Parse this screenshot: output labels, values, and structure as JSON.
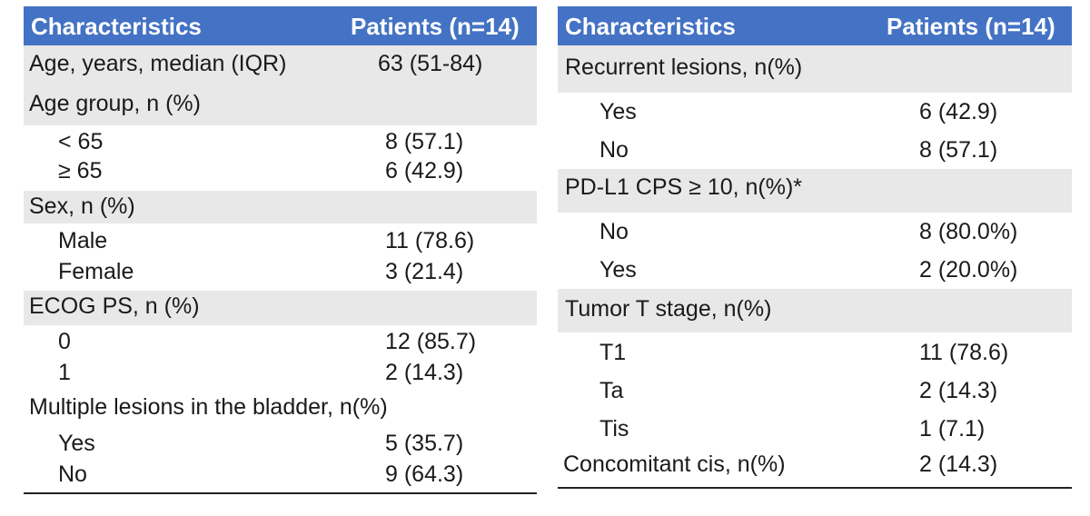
{
  "left_table": {
    "header": {
      "col1": "Characteristics",
      "col2": "Patients (n=14)"
    },
    "rows": [
      {
        "label": "Age, years, median (IQR)",
        "value": "63 (51-84)",
        "kind": "group-value"
      },
      {
        "label": "Age group, n (%)",
        "value": "",
        "kind": "group"
      },
      {
        "label": "< 65",
        "value": "8 (57.1)",
        "kind": "item"
      },
      {
        "label": "≥ 65",
        "value": "6 (42.9)",
        "kind": "item"
      },
      {
        "label": "Sex, n (%)",
        "value": "",
        "kind": "group"
      },
      {
        "label": "Male",
        "value": "11 (78.6)",
        "kind": "item"
      },
      {
        "label": "Female",
        "value": "3 (21.4)",
        "kind": "item"
      },
      {
        "label": "ECOG PS, n (%)",
        "value": "",
        "kind": "group"
      },
      {
        "label": "0",
        "value": "12 (85.7)",
        "kind": "item"
      },
      {
        "label": "1",
        "value": "2 (14.3)",
        "kind": "item"
      },
      {
        "label": "Multiple lesions in the bladder, n(%)",
        "value": "",
        "kind": "group"
      },
      {
        "label": "Yes",
        "value": "5 (35.7)",
        "kind": "item"
      },
      {
        "label": "No",
        "value": "9 (64.3)",
        "kind": "item"
      }
    ]
  },
  "right_table": {
    "header": {
      "col1": "Characteristics",
      "col2": "Patients (n=14)"
    },
    "rows": [
      {
        "label": "Recurrent lesions, n(%)",
        "value": "",
        "kind": "group"
      },
      {
        "label": "Yes",
        "value": "6 (42.9)",
        "kind": "item"
      },
      {
        "label": "No",
        "value": "8 (57.1)",
        "kind": "item"
      },
      {
        "label": "PD-L1 CPS ≥ 10, n(%)*",
        "value": "",
        "kind": "group"
      },
      {
        "label": "No",
        "value": "8 (80.0%)",
        "kind": "item"
      },
      {
        "label": "Yes",
        "value": "2 (20.0%)",
        "kind": "item"
      },
      {
        "label": "Tumor T stage, n(%)",
        "value": "",
        "kind": "group"
      },
      {
        "label": "T1",
        "value": "11 (78.6)",
        "kind": "item"
      },
      {
        "label": "Ta",
        "value": "2 (14.3)",
        "kind": "item"
      },
      {
        "label": "Tis",
        "value": "1 (7.1)",
        "kind": "item"
      },
      {
        "label": "Concomitant cis, n(%)",
        "value": "2 (14.3)",
        "kind": "group-value"
      }
    ]
  }
}
